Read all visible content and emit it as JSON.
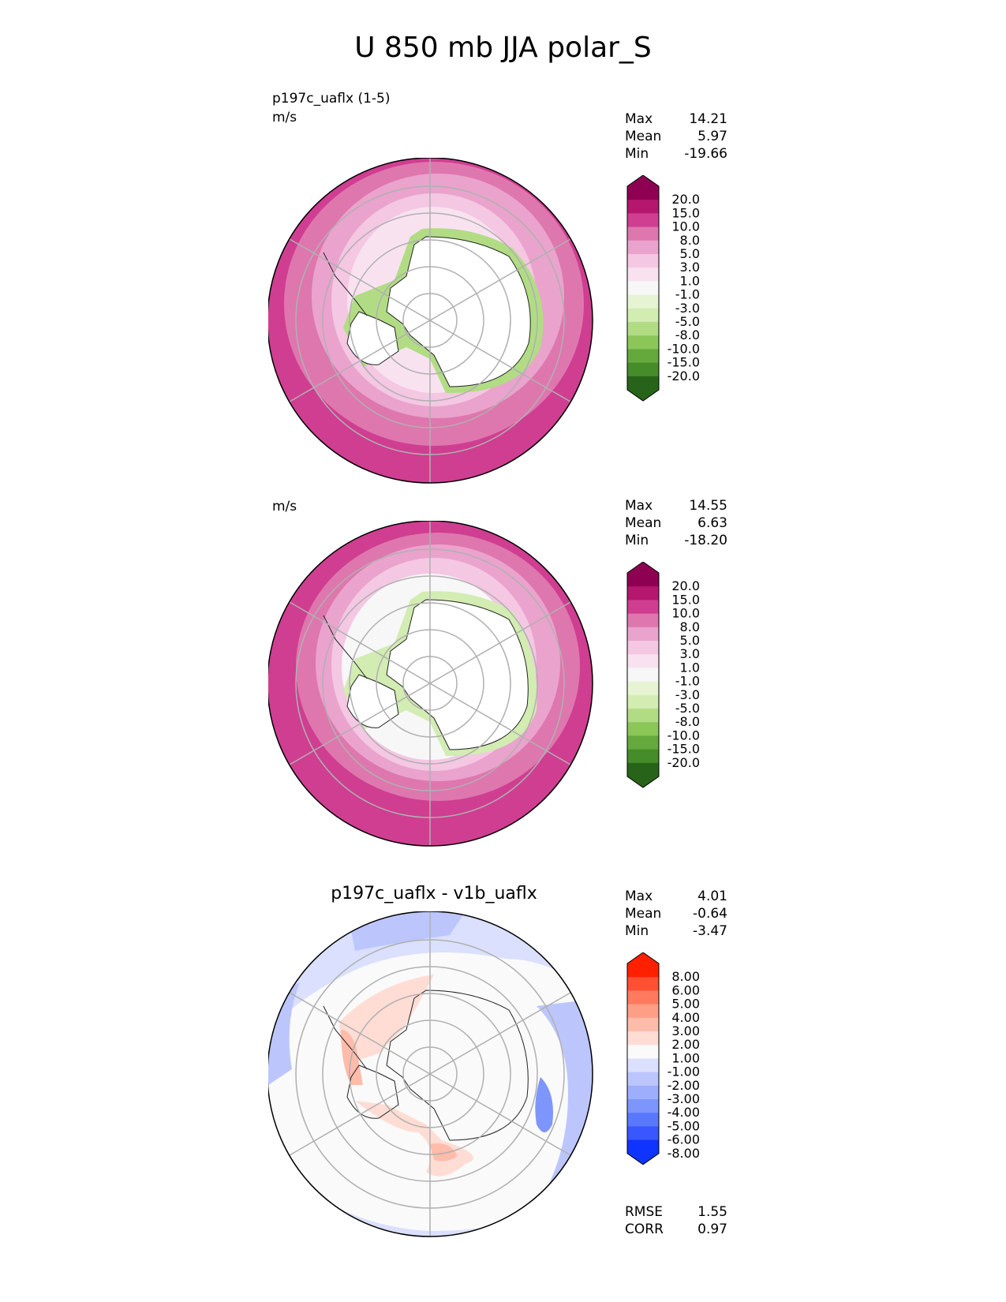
{
  "title": "U 850 mb JJA polar_S",
  "panels": [
    {
      "id": "test",
      "label_line1": "p197c_uaflx (1-5)",
      "label_line2": "m/s",
      "center_title": "",
      "stats": {
        "max_label": "Max",
        "max": "14.21",
        "mean_label": "Mean",
        "mean": "5.97",
        "min_label": "Min",
        "min": "-19.66"
      },
      "colormap": "PiYG",
      "colorbar_ticks": [
        "20.0",
        "15.0",
        "10.0",
        "8.0",
        "5.0",
        "3.0",
        "1.0",
        "-1.0",
        "-3.0",
        "-5.0",
        "-8.0",
        "-10.0",
        "-15.0",
        "-20.0"
      ]
    },
    {
      "id": "reference",
      "label_line1": "",
      "label_line2": "m/s",
      "center_title": "",
      "stats": {
        "max_label": "Max",
        "max": "14.55",
        "mean_label": "Mean",
        "mean": "6.63",
        "min_label": "Min",
        "min": "-18.20"
      },
      "colormap": "PiYG",
      "colorbar_ticks": [
        "20.0",
        "15.0",
        "10.0",
        "8.0",
        "5.0",
        "3.0",
        "1.0",
        "-1.0",
        "-3.0",
        "-5.0",
        "-8.0",
        "-10.0",
        "-15.0",
        "-20.0"
      ]
    },
    {
      "id": "difference",
      "label_line1": "",
      "label_line2": "",
      "center_title": "p197c_uaflx - v1b_uaflx",
      "stats": {
        "max_label": "Max",
        "max": "4.01",
        "mean_label": "Mean",
        "mean": "-0.64",
        "min_label": "Min",
        "min": "-3.47"
      },
      "colormap": "bwr",
      "colorbar_ticks": [
        "8.00",
        "6.00",
        "5.00",
        "4.00",
        "3.00",
        "2.00",
        "1.00",
        "-1.00",
        "-2.00",
        "-3.00",
        "-4.00",
        "-5.00",
        "-6.00",
        "-8.00"
      ],
      "footer": {
        "rmse_label": "RMSE",
        "rmse": "1.55",
        "corr_label": "CORR",
        "corr": "0.97"
      }
    }
  ],
  "colors": {
    "piyg": [
      "#8e0152",
      "#b5176f",
      "#cf3e91",
      "#de77ae",
      "#eaa3cd",
      "#f4c7e3",
      "#f9e2f0",
      "#f7f7f7",
      "#e7f4d4",
      "#d2ecb2",
      "#b1dc84",
      "#8cc659",
      "#65a93c",
      "#468d2a",
      "#276419"
    ],
    "bwr": [
      "#ff2000",
      "#ff5032",
      "#ff7a5e",
      "#ff9e86",
      "#ffbcaa",
      "#ffddd4",
      "#fafafa",
      "#dae0fd",
      "#bcc6fd",
      "#9daefc",
      "#7e96fc",
      "#5a78fd",
      "#3858fe",
      "#0f34fe"
    ]
  }
}
